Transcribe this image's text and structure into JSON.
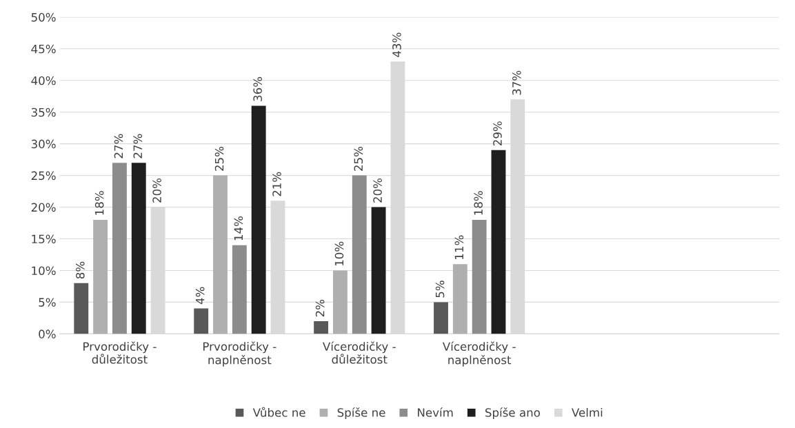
{
  "chart_data": {
    "type": "bar",
    "categories": [
      "Prvorodičky -\ndůležitost",
      "Prvorodičky -\nnaplněnost",
      "Vícerodičky -\ndůležitost",
      "Vícerodičky -\nnaplněnost",
      null,
      null
    ],
    "series": [
      {
        "name": "Vůbec ne",
        "color": "#595959",
        "values": [
          8,
          4,
          2,
          5,
          null,
          null
        ],
        "value_labels": [
          "8%",
          "4%",
          "2%",
          "5%",
          null,
          null
        ]
      },
      {
        "name": "Spíše ne",
        "color": "#afafaf",
        "values": [
          18,
          25,
          10,
          11,
          null,
          null
        ],
        "value_labels": [
          "18%",
          "25%",
          "10%",
          "11%",
          null,
          null
        ]
      },
      {
        "name": "Nevím",
        "color": "#8c8c8c",
        "values": [
          27,
          14,
          25,
          18,
          null,
          null
        ],
        "value_labels": [
          "27%",
          "14%",
          "25%",
          "18%",
          null,
          null
        ]
      },
      {
        "name": "Spíše ano",
        "color": "#1e1e1e",
        "values": [
          27,
          36,
          20,
          29,
          null,
          null
        ],
        "value_labels": [
          "27%",
          "36%",
          "20%",
          "29%",
          null,
          null
        ]
      },
      {
        "name": "Velmi",
        "color": "#d9d9d9",
        "values": [
          20,
          21,
          43,
          37,
          null,
          null
        ],
        "value_labels": [
          "20%",
          "21%",
          "43%",
          "37%",
          null,
          null
        ]
      }
    ],
    "ylim": [
      0,
      50
    ],
    "yticks": [
      {
        "value": 0,
        "label": "0%"
      },
      {
        "value": 5,
        "label": "5%"
      },
      {
        "value": 10,
        "label": "10%"
      },
      {
        "value": 15,
        "label": "15%"
      },
      {
        "value": 20,
        "label": "20%"
      },
      {
        "value": 25,
        "label": "25%"
      },
      {
        "value": 30,
        "label": "30%"
      },
      {
        "value": 35,
        "label": "35%"
      },
      {
        "value": 40,
        "label": "40%"
      },
      {
        "value": 45,
        "label": "45%"
      },
      {
        "value": 50,
        "label": "50%"
      }
    ],
    "grid": "y",
    "legend": "bottom"
  }
}
